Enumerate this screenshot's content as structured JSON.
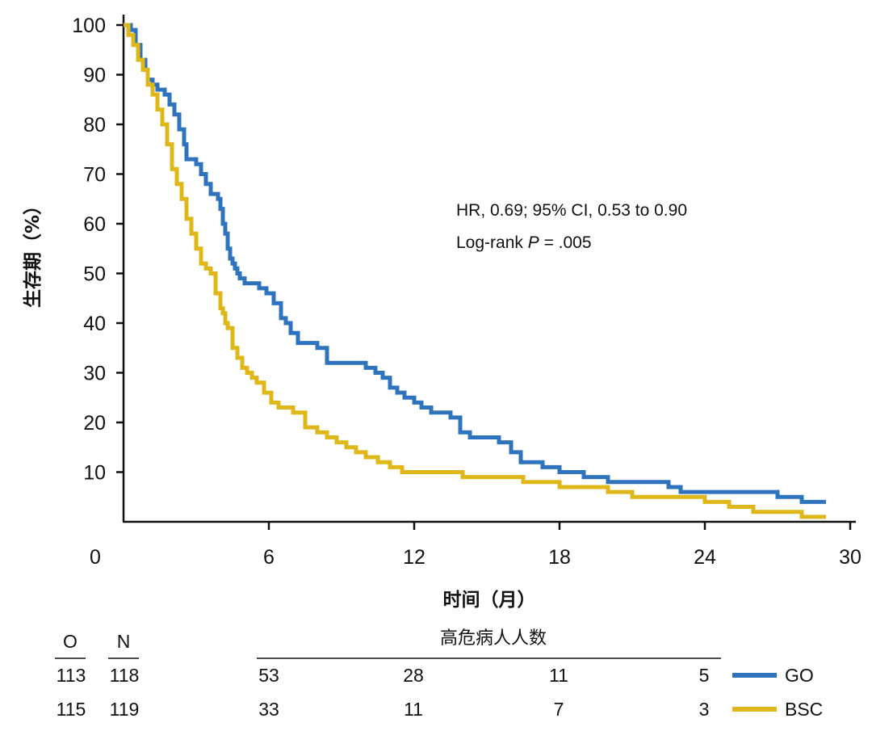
{
  "chart_data": {
    "type": "line",
    "subtype": "kaplan-meier",
    "ylabel": "生存期（%）",
    "xlabel": "时间（月）",
    "xlim": [
      0,
      30
    ],
    "ylim": [
      0,
      100
    ],
    "xticks": [
      0,
      6,
      12,
      18,
      24,
      30
    ],
    "yticks": [
      10,
      20,
      30,
      40,
      50,
      60,
      70,
      80,
      90,
      100
    ],
    "grid": false,
    "annotation": {
      "line1": "HR, 0.69; 95% CI, 0.53 to 0.90",
      "line2_prefix": "Log-rank ",
      "line2_italic": "P",
      "line2_suffix": " = .005"
    },
    "series": [
      {
        "name": "GO",
        "color": "#2f73be",
        "x": [
          0.0,
          0.3,
          0.5,
          0.7,
          0.9,
          1.0,
          1.2,
          1.4,
          1.7,
          1.9,
          2.1,
          2.3,
          2.5,
          2.6,
          2.8,
          3.0,
          3.2,
          3.4,
          3.6,
          3.8,
          3.9,
          4.0,
          4.1,
          4.2,
          4.3,
          4.4,
          4.5,
          4.6,
          4.7,
          4.8,
          5.0,
          5.3,
          5.6,
          5.9,
          6.2,
          6.5,
          6.7,
          6.9,
          7.2,
          7.5,
          8.0,
          8.4,
          8.7,
          9.5,
          10.0,
          10.4,
          10.7,
          11.0,
          11.3,
          11.6,
          12.0,
          12.3,
          12.7,
          13.0,
          13.5,
          13.9,
          14.3,
          15.0,
          15.5,
          16.0,
          16.4,
          16.8,
          17.3,
          18.0,
          19.0,
          20.0,
          21.0,
          22.0,
          22.5,
          23.0,
          24.0,
          25.0,
          26.0,
          27.0,
          28.0,
          29.0
        ],
        "y": [
          100,
          99,
          96,
          93,
          91,
          89,
          88,
          87,
          86,
          84,
          82,
          79,
          76,
          73,
          73,
          72,
          70,
          68,
          66,
          66,
          65,
          63,
          60,
          58,
          55,
          53,
          52,
          51,
          50,
          49,
          48,
          48,
          47,
          46,
          44,
          41,
          40,
          38,
          36,
          36,
          35,
          32,
          32,
          32,
          31,
          30,
          29,
          27,
          26,
          25,
          24,
          23,
          22,
          22,
          21,
          18,
          17,
          17,
          16,
          14,
          12,
          12,
          11,
          10,
          9,
          8,
          8,
          8,
          7,
          6,
          6,
          6,
          6,
          5,
          4,
          4
        ]
      },
      {
        "name": "BSC",
        "color": "#e0b719",
        "x": [
          0.0,
          0.2,
          0.4,
          0.6,
          0.8,
          1.0,
          1.2,
          1.4,
          1.6,
          1.8,
          2.0,
          2.2,
          2.4,
          2.6,
          2.8,
          3.0,
          3.2,
          3.4,
          3.6,
          3.8,
          4.0,
          4.1,
          4.2,
          4.3,
          4.5,
          4.7,
          4.9,
          5.1,
          5.3,
          5.5,
          5.8,
          6.1,
          6.4,
          6.7,
          7.0,
          7.5,
          8.0,
          8.4,
          8.8,
          9.2,
          9.6,
          10.0,
          10.5,
          11.0,
          11.5,
          12.0,
          13.0,
          14.0,
          15.0,
          16.0,
          16.5,
          17.0,
          18.0,
          19.0,
          20.0,
          21.0,
          22.0,
          23.0,
          24.0,
          25.0,
          26.0,
          27.0,
          28.0,
          29.0
        ],
        "y": [
          100,
          98,
          96,
          93,
          91,
          88,
          86,
          83,
          80,
          76,
          71,
          68,
          65,
          61,
          58,
          55,
          52,
          51,
          50,
          46,
          43,
          42,
          40,
          39,
          35,
          33,
          31,
          30,
          29,
          28,
          26,
          24,
          23,
          23,
          22,
          19,
          18,
          17,
          16,
          15,
          14,
          13,
          12,
          11,
          10,
          10,
          10,
          9,
          9,
          9,
          8,
          8,
          7,
          7,
          6,
          5,
          5,
          5,
          4,
          3,
          2,
          2,
          1,
          1
        ]
      }
    ],
    "risk_table": {
      "title": "高危病人人数",
      "col_o": "O",
      "col_n": "N",
      "rows": [
        {
          "o": "113",
          "n": "118",
          "values": [
            "53",
            "28",
            "11",
            "5"
          ],
          "label": "GO",
          "color": "#2f73be"
        },
        {
          "o": "115",
          "n": "119",
          "values": [
            "33",
            "11",
            "7",
            "3"
          ],
          "label": "BSC",
          "color": "#e0b719"
        }
      ]
    }
  }
}
